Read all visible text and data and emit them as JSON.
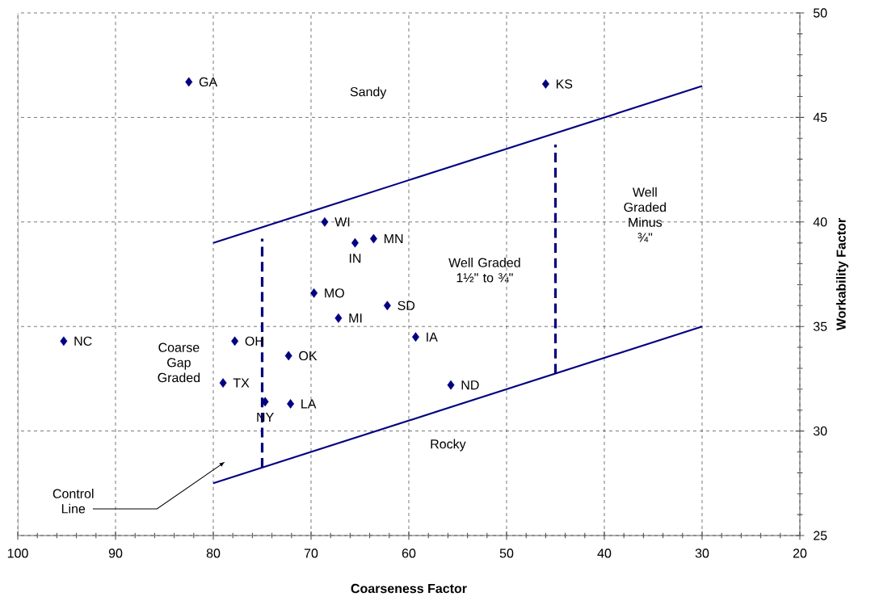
{
  "chart_data": {
    "type": "scatter",
    "xlabel": "Coarseness Factor",
    "ylabel": "Workability Factor",
    "xlim": [
      100,
      20
    ],
    "xticks": [
      100,
      90,
      80,
      70,
      60,
      50,
      40,
      30,
      20
    ],
    "ylim": [
      25,
      50
    ],
    "yticks": [
      25,
      30,
      35,
      40,
      45,
      50
    ],
    "grid": true,
    "series": [
      {
        "marker": "diamond",
        "color": "#000080",
        "x": [
          82.5,
          46.0,
          68.6,
          65.5,
          63.6,
          69.7,
          62.2,
          67.2,
          59.3,
          95.3,
          77.8,
          72.3,
          79.0,
          55.7,
          74.7,
          72.1
        ],
        "values": [
          46.7,
          46.6,
          40.0,
          39.0,
          39.2,
          36.6,
          36.0,
          35.4,
          34.5,
          34.3,
          34.3,
          33.6,
          32.3,
          32.2,
          31.4,
          31.3
        ],
        "value_labels": [
          "GA",
          "KS",
          "WI",
          "IN",
          "MN",
          "MO",
          "SD",
          "MI",
          "IA",
          "NC",
          "OH",
          "OK",
          "TX",
          "ND",
          "NY",
          "LA"
        ]
      },
      {
        "type": "line",
        "color": "#000080",
        "x": [
          80,
          30
        ],
        "values": [
          39,
          46.5
        ]
      },
      {
        "type": "line",
        "color": "#000080",
        "x": [
          80,
          30
        ],
        "values": [
          27.5,
          35
        ]
      },
      {
        "type": "line",
        "color": "#000080",
        "line_style": "dashed",
        "x": [
          75,
          75
        ],
        "values": [
          28.25,
          39.2
        ]
      },
      {
        "type": "line",
        "color": "#000080",
        "line_style": "dashed",
        "x": [
          45,
          45
        ],
        "values": [
          32.75,
          43.7
        ]
      }
    ],
    "annotations": [
      "Sandy",
      "Well Graded 1½\" to ¾\"",
      "Well Graded Minus ¾\"",
      "Coarse Gap Graded",
      "Rocky",
      "Control Line"
    ]
  }
}
